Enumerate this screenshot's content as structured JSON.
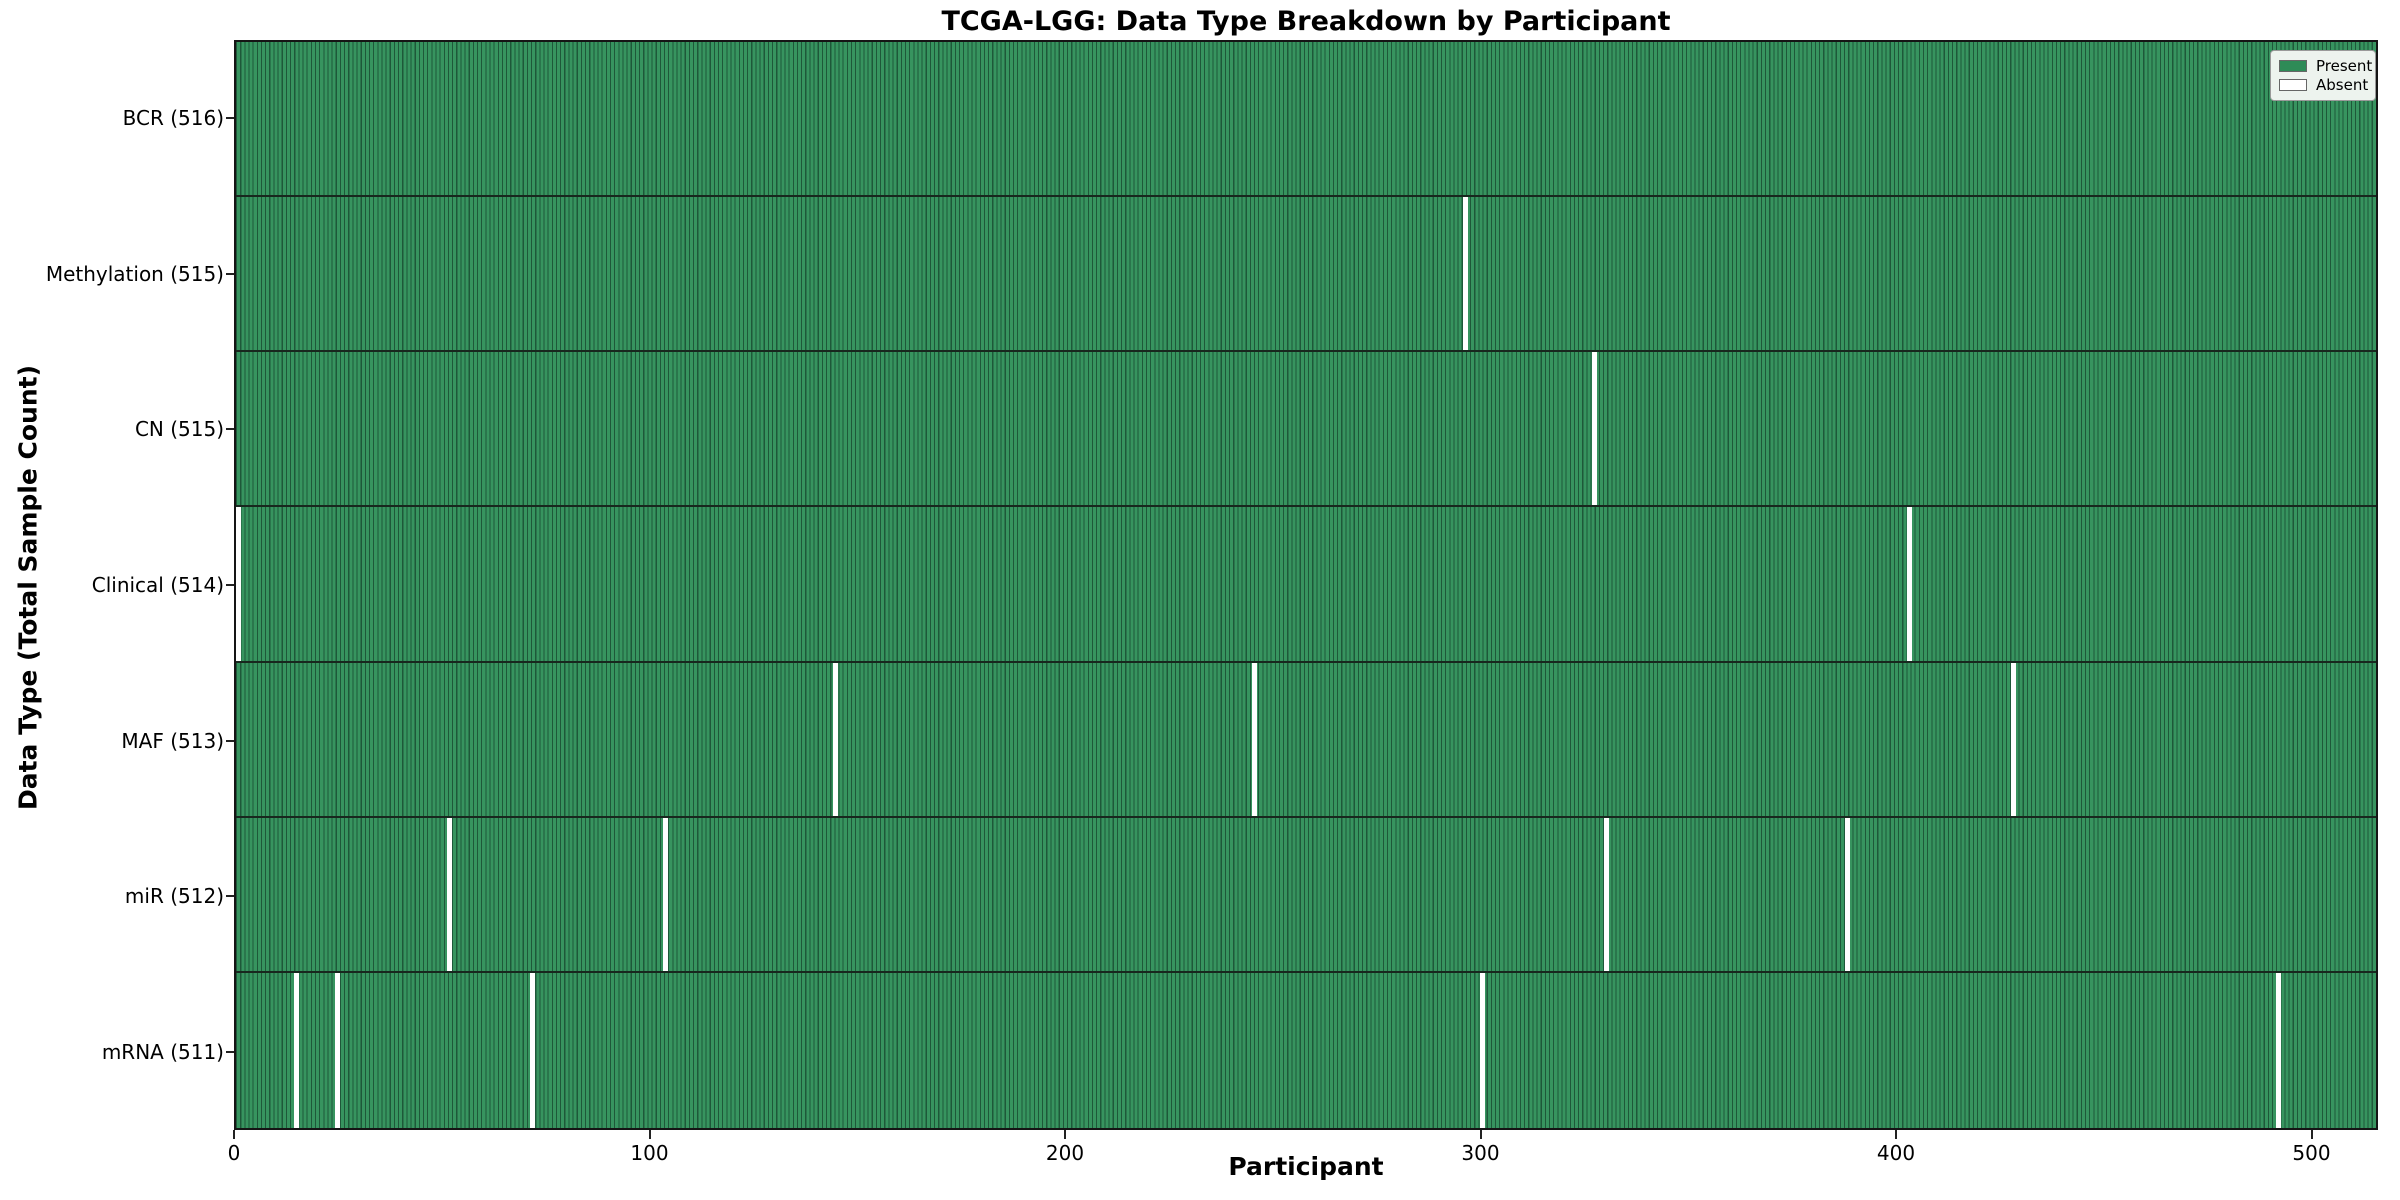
{
  "figure": {
    "title": "TCGA-LGG: Data Type Breakdown by Participant",
    "xlabel": "Participant",
    "ylabel": "Data Type (Total Sample Count)"
  },
  "legend": {
    "position": "upper right",
    "entries": [
      {
        "label": "Present",
        "color": "#2e8b57"
      },
      {
        "label": "Absent",
        "color": "#ffffff"
      }
    ]
  },
  "colors": {
    "present_fill": "#37945f",
    "present_edge": "#1e5839",
    "absent": "#ffffff",
    "row_divider": "#18271e",
    "plot_border": "#151515",
    "legend_bg": "#edf3ee",
    "legend_border": "#999999",
    "text": "#000000"
  },
  "chart_data": {
    "type": "heatmap",
    "title": "TCGA-LGG: Data Type Breakdown by Participant",
    "xlabel": "Participant",
    "ylabel": "Data Type (Total Sample Count)",
    "legend_entries": [
      "Present",
      "Absent"
    ],
    "legend_position": "upper right",
    "grid": false,
    "n_participants": 516,
    "xlim": [
      0,
      516
    ],
    "x_ticks": [
      0,
      100,
      200,
      300,
      400,
      500
    ],
    "rows": [
      {
        "label": "BCR (516)",
        "data_type": "BCR",
        "total": 516,
        "absent_participants": []
      },
      {
        "label": "Methylation (515)",
        "data_type": "Methylation",
        "total": 515,
        "absent_participants": [
          296
        ]
      },
      {
        "label": "CN (515)",
        "data_type": "CN",
        "total": 515,
        "absent_participants": [
          327
        ]
      },
      {
        "label": "Clinical (514)",
        "data_type": "Clinical",
        "total": 514,
        "absent_participants": [
          0,
          403
        ]
      },
      {
        "label": "MAF (513)",
        "data_type": "MAF",
        "total": 513,
        "absent_participants": [
          144,
          245,
          428
        ]
      },
      {
        "label": "miR (512)",
        "data_type": "miR",
        "total": 512,
        "absent_participants": [
          51,
          103,
          330,
          388
        ]
      },
      {
        "label": "mRNA (511)",
        "data_type": "mRNA",
        "total": 511,
        "absent_participants": [
          14,
          24,
          71,
          300,
          492
        ]
      }
    ]
  }
}
